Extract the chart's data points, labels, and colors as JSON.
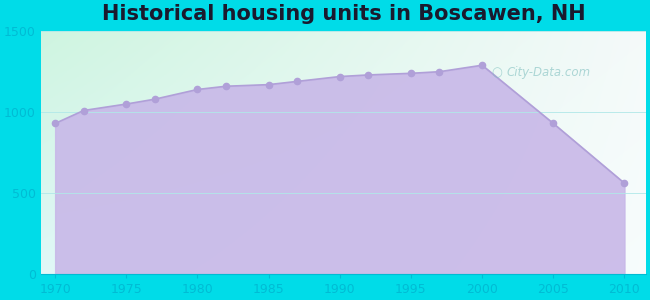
{
  "title": "Historical housing units in Boscawen, NH",
  "years": [
    1970,
    1972,
    1975,
    1977,
    1980,
    1982,
    1985,
    1987,
    1990,
    1992,
    1995,
    1997,
    2000,
    2005,
    2010
  ],
  "values": [
    930,
    1010,
    1050,
    1080,
    1140,
    1160,
    1170,
    1190,
    1220,
    1230,
    1240,
    1250,
    1290,
    930,
    560
  ],
  "ylim": [
    0,
    1500
  ],
  "yticks": [
    0,
    500,
    1000,
    1500
  ],
  "xticks": [
    1970,
    1975,
    1980,
    1985,
    1990,
    1995,
    2000,
    2005,
    2010
  ],
  "fill_color": "#c8b8e8",
  "line_color": "#b0a0d8",
  "marker_color": "#b0a0d8",
  "bg_outer": "#00dce8",
  "bg_grad_topleft": "#cef5e0",
  "bg_grad_topright": "#f0f4f8",
  "bg_grad_bottom": "#e8f8f8",
  "title_fontsize": 15,
  "title_color": "#1a1a2e",
  "tick_color": "#00bcd4",
  "watermark_text": "City-Data.com",
  "watermark_color": "#7fbfbf",
  "watermark_alpha": 0.6,
  "xlim": [
    1969.0,
    2011.5
  ]
}
